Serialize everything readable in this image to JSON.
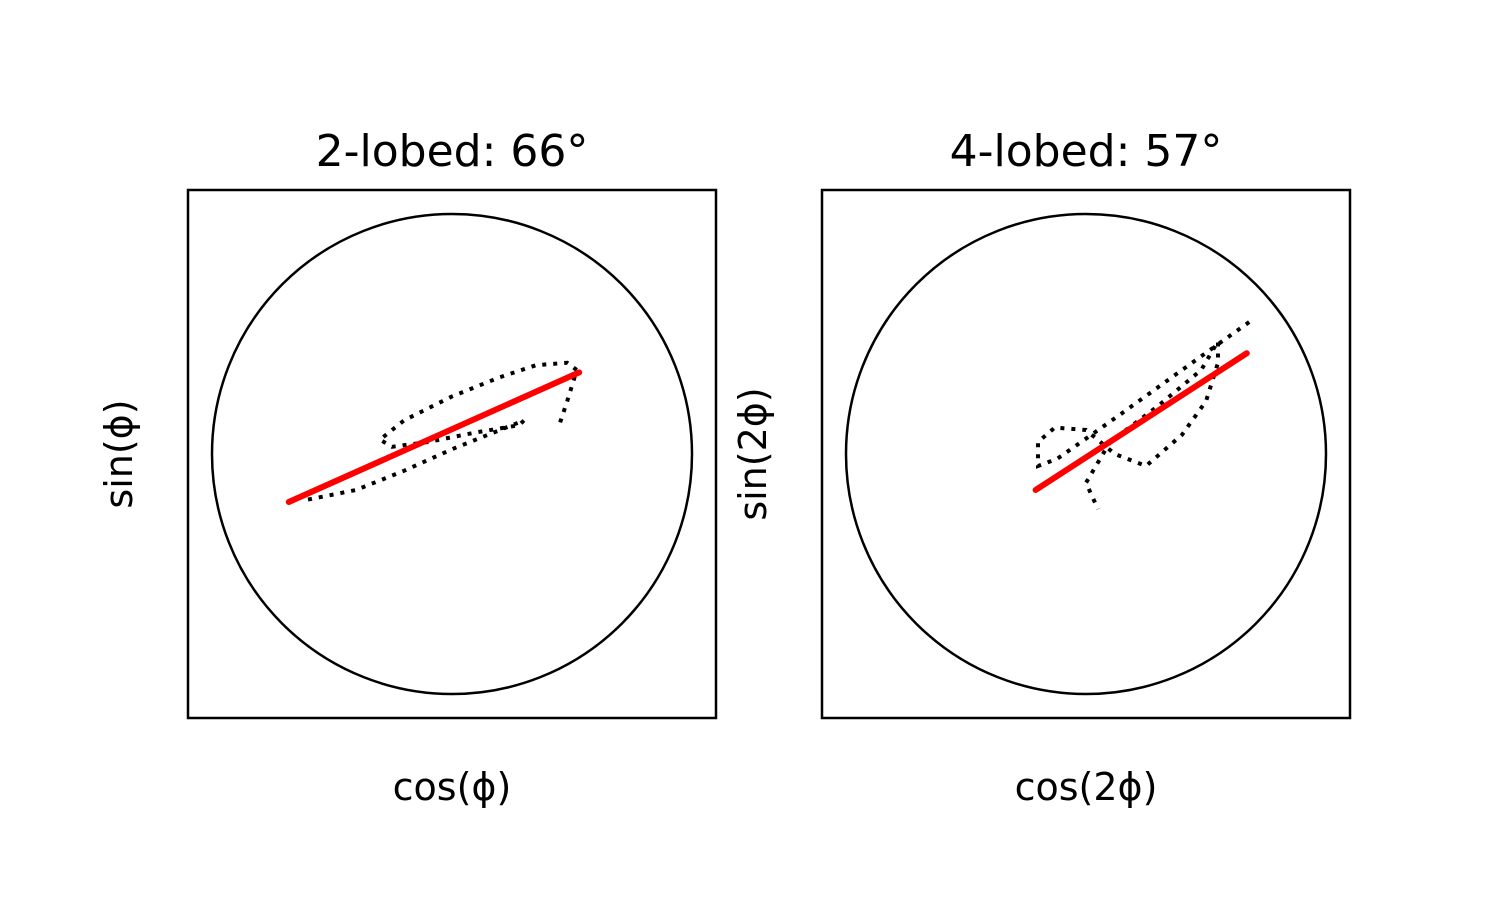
{
  "chart_data": [
    {
      "type": "line",
      "title": "2-lobed: 66°",
      "xlabel": "cos(ϕ)",
      "ylabel": "sin(ϕ)",
      "xlim": [
        -1.1,
        1.1
      ],
      "ylim": [
        -1.1,
        1.1
      ],
      "grid": false,
      "show_ticks": false,
      "series": [
        {
          "role": "unit-circle",
          "style": "solid",
          "color": "#000000",
          "radius": 1.0
        },
        {
          "role": "trace",
          "style": "dotted",
          "color": "#000000",
          "x": [
            -0.6,
            -0.4,
            -0.2,
            0.0,
            0.15,
            0.25,
            0.3,
            0.28,
            0.1,
            -0.1,
            -0.25,
            -0.3,
            -0.2,
            0.0,
            0.2,
            0.35,
            0.48,
            0.52,
            0.48,
            0.45
          ],
          "y": [
            -0.19,
            -0.15,
            -0.07,
            0.02,
            0.08,
            0.12,
            0.14,
            0.12,
            0.09,
            0.05,
            0.03,
            0.06,
            0.14,
            0.24,
            0.32,
            0.37,
            0.38,
            0.35,
            0.22,
            0.13
          ]
        },
        {
          "role": "mean-direction",
          "style": "solid",
          "color": "#ff0000",
          "x": [
            -0.68,
            0.53
          ],
          "y": [
            -0.2,
            0.34
          ]
        }
      ]
    },
    {
      "type": "line",
      "title": "4-lobed: 57°",
      "xlabel": "cos(2ϕ)",
      "ylabel": "sin(2ϕ)",
      "xlim": [
        -1.1,
        1.1
      ],
      "ylim": [
        -1.1,
        1.1
      ],
      "grid": false,
      "show_ticks": false,
      "series": [
        {
          "role": "unit-circle",
          "style": "solid",
          "color": "#000000",
          "radius": 1.0
        },
        {
          "role": "trace",
          "style": "dotted",
          "color": "#000000",
          "x": [
            0.68,
            0.4,
            0.15,
            -0.02,
            -0.12,
            -0.2,
            -0.2,
            -0.13,
            0.0,
            0.12,
            0.25,
            0.4,
            0.5,
            0.55,
            0.55,
            0.48,
            0.3,
            0.1,
            0.0,
            0.05
          ],
          "y": [
            0.55,
            0.35,
            0.17,
            0.05,
            -0.02,
            -0.05,
            0.05,
            0.11,
            0.1,
            0.0,
            -0.05,
            0.08,
            0.22,
            0.38,
            0.47,
            0.35,
            0.2,
            0.05,
            -0.12,
            -0.23
          ]
        },
        {
          "role": "mean-direction",
          "style": "solid",
          "color": "#ff0000",
          "x": [
            -0.21,
            0.67
          ],
          "y": [
            -0.15,
            0.42
          ]
        }
      ]
    }
  ]
}
